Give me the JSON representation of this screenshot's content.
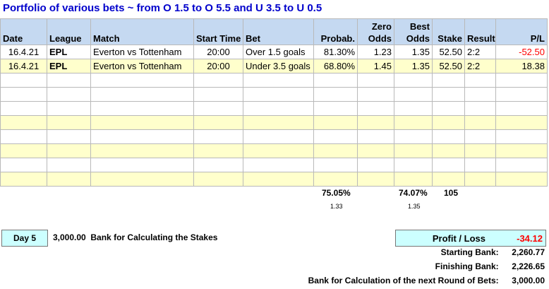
{
  "title": "Portfolio of various bets ~ from O 1.5 to O 5.5 and U 3.5 to U 0.5",
  "headers": {
    "date": "Date",
    "league": "League",
    "match": "Match",
    "start_time": "Start Time",
    "bet": "Bet",
    "probab": "Probab.",
    "zero_odds_1": "Zero",
    "zero_odds_2": "Odds",
    "best_odds_1": "Best",
    "best_odds_2": "Odds",
    "stake": "Stake",
    "result": "Result",
    "pl": "P/L"
  },
  "rows": [
    {
      "date": "16.4.21",
      "league": "EPL",
      "match": "Everton vs Tottenham",
      "time": "20:00",
      "bet": "Over 1.5 goals",
      "probab": "81.30%",
      "zero_odds": "1.23",
      "best_odds": "1.35",
      "stake": "52.50",
      "result": "2:2",
      "pl": "-52.50"
    },
    {
      "date": "16.4.21",
      "league": "EPL",
      "match": "Everton vs Tottenham",
      "time": "20:00",
      "bet": "Under 3.5 goals",
      "probab": "68.80%",
      "zero_odds": "1.45",
      "best_odds": "1.35",
      "stake": "52.50",
      "result": "2:2",
      "pl": "18.38"
    }
  ],
  "summary": {
    "avg_probab": "75.05%",
    "avg_probab_odds": "1.33",
    "avg_best": "74.07%",
    "avg_best_odds": "1.35",
    "total_stake": "105"
  },
  "day": "Day 5",
  "bank_calc_value": "3,000.00",
  "bank_calc_label": "Bank for Calculating the Stakes",
  "profit_loss_label": "Profit / Loss",
  "profit_loss_value": "-34.12",
  "starting_bank_label": "Starting Bank:",
  "starting_bank_value": "2,260.77",
  "finishing_bank_label": "Finishing Bank:",
  "finishing_bank_value": "2,226.65",
  "next_bank_label": "Bank for Calculation of the next Round of Bets:",
  "next_bank_value": "3,000.00"
}
